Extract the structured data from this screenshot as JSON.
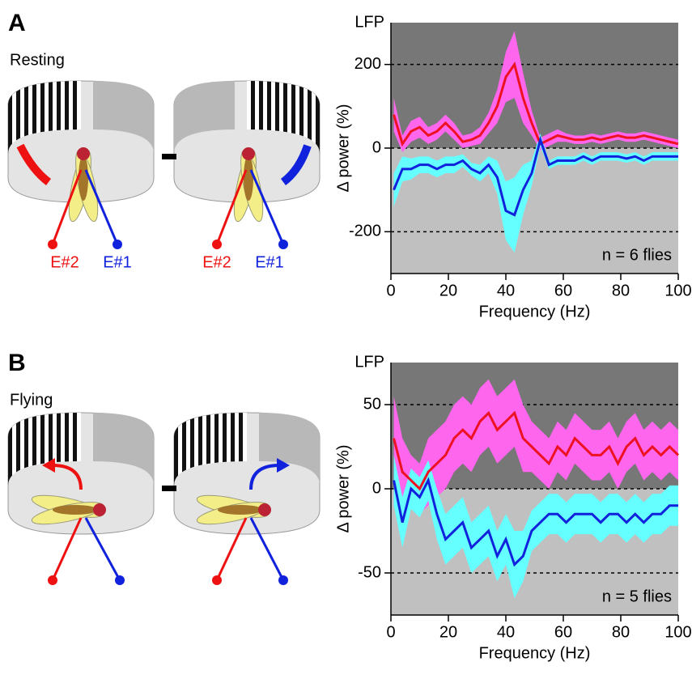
{
  "chart_data": [
    {
      "type": "line",
      "panel": "A",
      "condition": "Resting",
      "axis_title": "LFP",
      "ylabel": "Δ power (%)",
      "xlabel": "Frequency (Hz)",
      "annotation": "n = 6 flies",
      "electrode_labels": [
        "E#2",
        "E#1",
        "E#2",
        "E#1"
      ],
      "x": [
        1,
        4,
        7,
        10,
        13,
        16,
        19,
        22,
        25,
        28,
        31,
        34,
        37,
        40,
        43,
        46,
        49,
        52,
        55,
        58,
        61,
        64,
        67,
        70,
        73,
        76,
        79,
        82,
        85,
        88,
        91,
        94,
        97,
        100
      ],
      "xlim": [
        0,
        100
      ],
      "xticks": [
        0,
        20,
        40,
        60,
        80,
        100
      ],
      "ylim": [
        -300,
        300
      ],
      "yticks": [
        -200,
        0,
        200
      ],
      "series": [
        {
          "color": "#ee1122",
          "band_color": "#ff66ee",
          "values": [
            80,
            10,
            40,
            50,
            30,
            40,
            60,
            40,
            15,
            20,
            30,
            60,
            100,
            170,
            200,
            120,
            60,
            10,
            20,
            30,
            25,
            20,
            20,
            25,
            20,
            25,
            30,
            25,
            25,
            30,
            25,
            20,
            15,
            10
          ],
          "errors": [
            40,
            20,
            25,
            25,
            20,
            20,
            20,
            20,
            15,
            15,
            20,
            25,
            40,
            60,
            80,
            60,
            30,
            15,
            15,
            15,
            10,
            10,
            10,
            10,
            10,
            10,
            10,
            10,
            10,
            10,
            10,
            10,
            10,
            10
          ]
        },
        {
          "color": "#1122dd",
          "band_color": "#66ffff",
          "values": [
            -100,
            -50,
            -50,
            -40,
            -40,
            -50,
            -40,
            -40,
            -30,
            -50,
            -60,
            -40,
            -70,
            -150,
            -160,
            -100,
            -60,
            20,
            -40,
            -30,
            -30,
            -30,
            -20,
            -30,
            -20,
            -20,
            -20,
            -25,
            -20,
            -30,
            -20,
            -20,
            -20,
            -20
          ],
          "errors": [
            40,
            30,
            25,
            20,
            20,
            20,
            20,
            20,
            15,
            15,
            20,
            20,
            40,
            70,
            90,
            60,
            30,
            15,
            10,
            10,
            10,
            10,
            10,
            10,
            10,
            10,
            10,
            10,
            10,
            10,
            10,
            10,
            10,
            10
          ]
        }
      ]
    },
    {
      "type": "line",
      "panel": "B",
      "condition": "Flying",
      "axis_title": "LFP",
      "ylabel": "Δ power (%)",
      "xlabel": "Frequency (Hz)",
      "annotation": "n = 5 flies",
      "x": [
        1,
        4,
        7,
        10,
        13,
        16,
        19,
        22,
        25,
        28,
        31,
        34,
        37,
        40,
        43,
        46,
        49,
        52,
        55,
        58,
        61,
        64,
        67,
        70,
        73,
        76,
        79,
        82,
        85,
        88,
        91,
        94,
        97,
        100
      ],
      "xlim": [
        0,
        100
      ],
      "xticks": [
        0,
        20,
        40,
        60,
        80,
        100
      ],
      "ylim": [
        -75,
        75
      ],
      "yticks": [
        -50,
        0,
        50
      ],
      "series": [
        {
          "color": "#ee1122",
          "band_color": "#ff66ee",
          "values": [
            30,
            10,
            5,
            0,
            10,
            15,
            20,
            30,
            35,
            30,
            40,
            45,
            35,
            40,
            45,
            30,
            25,
            20,
            15,
            25,
            20,
            30,
            25,
            20,
            20,
            25,
            15,
            25,
            30,
            20,
            25,
            20,
            25,
            20
          ],
          "errors": [
            25,
            20,
            15,
            15,
            20,
            20,
            20,
            20,
            20,
            20,
            20,
            20,
            20,
            20,
            20,
            20,
            15,
            15,
            15,
            15,
            15,
            15,
            15,
            15,
            15,
            15,
            15,
            15,
            15,
            15,
            15,
            15,
            15,
            15
          ]
        },
        {
          "color": "#1122dd",
          "band_color": "#66ffff",
          "values": [
            5,
            -20,
            0,
            -5,
            5,
            -15,
            -30,
            -25,
            -20,
            -35,
            -30,
            -25,
            -40,
            -30,
            -45,
            -40,
            -25,
            -20,
            -15,
            -15,
            -20,
            -15,
            -15,
            -15,
            -20,
            -15,
            -15,
            -20,
            -15,
            -20,
            -15,
            -15,
            -10,
            -10
          ],
          "errors": [
            15,
            15,
            12,
            12,
            12,
            15,
            15,
            15,
            15,
            15,
            15,
            15,
            15,
            15,
            20,
            15,
            12,
            12,
            12,
            12,
            12,
            12,
            12,
            12,
            12,
            12,
            12,
            12,
            12,
            12,
            12,
            12,
            12,
            12
          ]
        }
      ]
    }
  ]
}
